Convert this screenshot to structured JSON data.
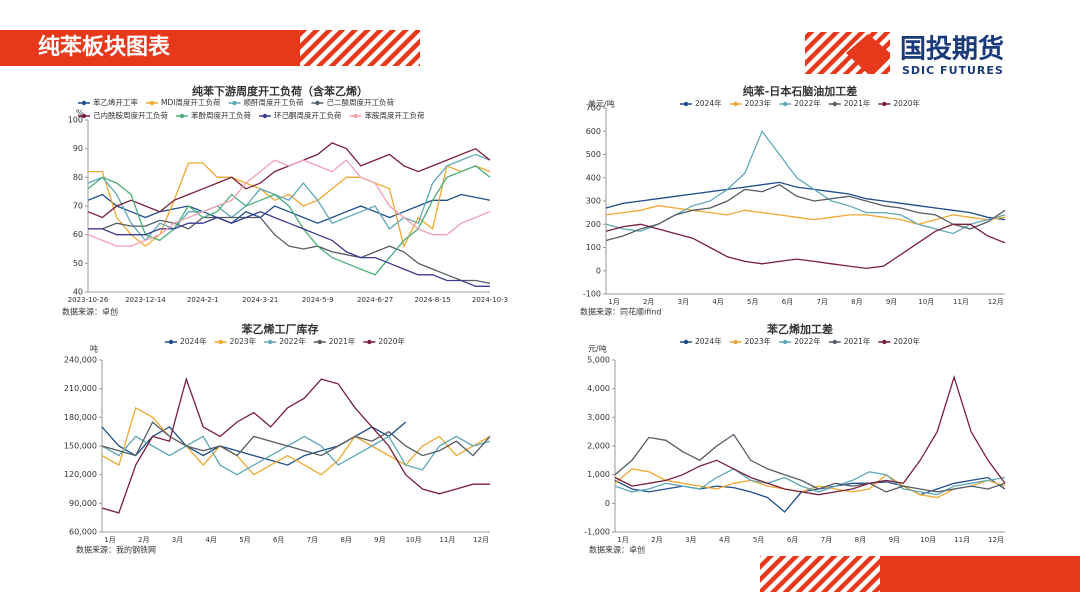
{
  "header": {
    "title": "纯苯板块图表",
    "logo_cn": "国投期货",
    "logo_en": "SDIC FUTURES"
  },
  "chart_data": [
    {
      "type": "line",
      "title": "纯苯下游周度开工负荷（含苯乙烯）",
      "y_label": "%",
      "source": "数据来源：卓创",
      "categories": [
        "2023-10-26",
        null,
        null,
        null,
        "2023-12-14",
        null,
        null,
        null,
        "2024-2-1",
        null,
        null,
        null,
        "2024-3-21",
        null,
        null,
        null,
        "2024-5-9",
        null,
        null,
        null,
        "2024-6-27",
        null,
        null,
        null,
        "2024-8-15",
        null,
        null,
        null,
        "2024-10-3"
      ],
      "ylim": [
        40,
        100
      ],
      "yticks": [
        40,
        50,
        60,
        70,
        80,
        90,
        100
      ],
      "series": [
        {
          "name": "苯乙烯开工率",
          "color": "#1f4e8c",
          "values": [
            72,
            74,
            70,
            68,
            66,
            68,
            69,
            70,
            68,
            66,
            64,
            68,
            66,
            70,
            68,
            66,
            64,
            66,
            68,
            70,
            68,
            66,
            68,
            70,
            72,
            72,
            74,
            73,
            72
          ]
        },
        {
          "name": "MDI周度开工负荷",
          "color": "#f0a830",
          "values": [
            82,
            82,
            66,
            60,
            56,
            60,
            72,
            85,
            85,
            80,
            80,
            78,
            76,
            72,
            74,
            70,
            72,
            76,
            80,
            80,
            78,
            76,
            56,
            66,
            62,
            84,
            82,
            84,
            82
          ]
        },
        {
          "name": "顺酐周度开工负荷",
          "color": "#5fa8b8",
          "values": [
            78,
            80,
            74,
            64,
            58,
            64,
            62,
            68,
            68,
            70,
            66,
            70,
            76,
            74,
            72,
            78,
            72,
            64,
            66,
            68,
            70,
            62,
            66,
            64,
            78,
            84,
            86,
            88,
            86
          ]
        },
        {
          "name": "己二酸周度开工负荷",
          "color": "#555d66",
          "values": [
            62,
            62,
            64,
            63,
            63,
            65,
            64,
            62,
            66,
            66,
            66,
            66,
            66,
            60,
            56,
            55,
            56,
            54,
            53,
            52,
            54,
            56,
            54,
            50,
            48,
            46,
            44,
            44,
            43
          ]
        },
        {
          "name": "己内酰胺周度开工负荷",
          "color": "#7a1f3d",
          "values": [
            68,
            66,
            70,
            72,
            70,
            68,
            72,
            74,
            76,
            78,
            80,
            76,
            78,
            82,
            84,
            86,
            88,
            92,
            90,
            84,
            86,
            88,
            84,
            82,
            84,
            86,
            88,
            90,
            86
          ]
        },
        {
          "name": "苯酚周度开工负荷",
          "color": "#4caf7a",
          "values": [
            76,
            80,
            78,
            74,
            60,
            58,
            62,
            70,
            66,
            68,
            74,
            70,
            72,
            74,
            70,
            62,
            56,
            52,
            50,
            48,
            46,
            52,
            58,
            62,
            72,
            80,
            82,
            84,
            80
          ]
        },
        {
          "name": "环己酮周度开工负荷",
          "color": "#3b3b8f",
          "values": [
            62,
            62,
            60,
            60,
            60,
            62,
            62,
            64,
            64,
            66,
            64,
            66,
            68,
            66,
            64,
            62,
            60,
            58,
            54,
            52,
            52,
            50,
            48,
            46,
            46,
            44,
            44,
            42,
            42
          ]
        },
        {
          "name": "苯胺周度开工负荷",
          "color": "#f2a0b0",
          "values": [
            60,
            58,
            56,
            56,
            58,
            60,
            64,
            66,
            68,
            70,
            72,
            78,
            82,
            86,
            84,
            86,
            84,
            82,
            86,
            80,
            78,
            70,
            66,
            62,
            60,
            60,
            64,
            66,
            68
          ]
        }
      ]
    },
    {
      "type": "line",
      "title": "纯苯-日本石脑油加工差",
      "y_label": "美元/吨",
      "source": "数据来源：同花顺ifind",
      "categories": [
        "1月",
        null,
        "2月",
        null,
        "3月",
        null,
        "4月",
        null,
        "5月",
        null,
        "6月",
        null,
        "7月",
        null,
        "8月",
        null,
        "9月",
        null,
        "10月",
        null,
        "11月",
        null,
        "12月",
        null
      ],
      "ylim": [
        -100,
        700
      ],
      "yticks": [
        -100,
        0,
        100,
        200,
        300,
        400,
        500,
        600,
        700
      ],
      "series": [
        {
          "name": "2024年",
          "color": "#1f4e8c",
          "values": [
            270,
            290,
            300,
            310,
            320,
            330,
            340,
            350,
            360,
            370,
            380,
            360,
            350,
            340,
            330,
            310,
            300,
            290,
            280,
            270,
            260,
            250,
            230,
            220
          ]
        },
        {
          "name": "2023年",
          "color": "#f0a830",
          "values": [
            240,
            250,
            260,
            280,
            270,
            260,
            250,
            240,
            260,
            250,
            240,
            230,
            220,
            230,
            240,
            240,
            230,
            220,
            200,
            220,
            240,
            230,
            220,
            230
          ]
        },
        {
          "name": "2022年",
          "color": "#5fa8b8",
          "values": [
            200,
            180,
            170,
            200,
            240,
            280,
            300,
            350,
            420,
            600,
            500,
            400,
            350,
            300,
            280,
            250,
            250,
            240,
            200,
            180,
            160,
            200,
            220,
            240
          ]
        },
        {
          "name": "2021年",
          "color": "#555d66",
          "values": [
            130,
            150,
            180,
            200,
            240,
            260,
            270,
            300,
            350,
            340,
            370,
            320,
            300,
            310,
            320,
            300,
            280,
            270,
            250,
            240,
            200,
            180,
            210,
            260
          ]
        },
        {
          "name": "2020年",
          "color": "#7a1f3d",
          "values": [
            170,
            190,
            200,
            180,
            160,
            140,
            100,
            60,
            40,
            30,
            40,
            50,
            40,
            30,
            20,
            10,
            20,
            70,
            120,
            170,
            200,
            200,
            150,
            120
          ]
        }
      ]
    },
    {
      "type": "line",
      "title": "苯乙烯工厂库存",
      "y_label": "吨",
      "source": "数据来源：我的钢铁网",
      "categories": [
        "1月",
        null,
        "2月",
        null,
        "3月",
        null,
        "4月",
        null,
        "5月",
        null,
        "6月",
        null,
        "7月",
        null,
        "8月",
        null,
        "9月",
        null,
        "10月",
        null,
        "11月",
        null,
        "12月",
        null
      ],
      "ylim": [
        60000,
        240000
      ],
      "yticks": [
        {
          "value": 60000,
          "label": "60,000"
        },
        {
          "value": 90000,
          "label": "90,000"
        },
        {
          "value": 120000,
          "label": "120,000"
        },
        {
          "value": 150000,
          "label": "150,000"
        },
        {
          "value": 180000,
          "label": "180,000"
        },
        {
          "value": 210000,
          "label": "210,000"
        },
        {
          "value": 240000,
          "label": "240,000"
        }
      ],
      "series": [
        {
          "name": "2024年",
          "color": "#1f4e8c",
          "values": [
            170000,
            150000,
            140000,
            160000,
            170000,
            150000,
            140000,
            150000,
            145000,
            140000,
            135000,
            130000,
            140000,
            145000,
            150000,
            160000,
            170000,
            160000,
            175000,
            null,
            null,
            null,
            null,
            null
          ]
        },
        {
          "name": "2023年",
          "color": "#f0a830",
          "values": [
            140000,
            130000,
            190000,
            180000,
            160000,
            150000,
            130000,
            150000,
            140000,
            120000,
            130000,
            140000,
            130000,
            120000,
            135000,
            160000,
            150000,
            140000,
            130000,
            150000,
            160000,
            140000,
            150000,
            160000
          ]
        },
        {
          "name": "2022年",
          "color": "#5fa8b8",
          "values": [
            150000,
            140000,
            160000,
            150000,
            140000,
            150000,
            160000,
            130000,
            120000,
            130000,
            140000,
            150000,
            160000,
            150000,
            130000,
            140000,
            150000,
            160000,
            130000,
            125000,
            150000,
            160000,
            150000,
            155000
          ]
        },
        {
          "name": "2021年",
          "color": "#555d66",
          "values": [
            150000,
            145000,
            140000,
            175000,
            160000,
            150000,
            145000,
            150000,
            140000,
            160000,
            155000,
            150000,
            145000,
            140000,
            150000,
            160000,
            155000,
            165000,
            150000,
            140000,
            145000,
            155000,
            140000,
            160000
          ]
        },
        {
          "name": "2020年",
          "color": "#7a1f3d",
          "values": [
            85000,
            80000,
            130000,
            160000,
            155000,
            220000,
            170000,
            160000,
            175000,
            185000,
            170000,
            190000,
            200000,
            220000,
            215000,
            190000,
            170000,
            150000,
            120000,
            105000,
            100000,
            105000,
            110000,
            110000
          ]
        }
      ]
    },
    {
      "type": "line",
      "title": "苯乙烯加工差",
      "y_label": "元/吨",
      "source": "数据来源：卓创",
      "categories": [
        "1月",
        null,
        "2月",
        null,
        "3月",
        null,
        "4月",
        null,
        "5月",
        null,
        "6月",
        null,
        "7月",
        null,
        "8月",
        null,
        "9月",
        null,
        "10月",
        null,
        "11月",
        null,
        "12月",
        null
      ],
      "ylim": [
        -1000,
        5000
      ],
      "yticks": [
        {
          "value": -1000,
          "label": "-1,000"
        },
        0,
        {
          "value": 1000,
          "label": "1,000"
        },
        {
          "value": 2000,
          "label": "2,000"
        },
        {
          "value": 3000,
          "label": "3,000"
        },
        {
          "value": 4000,
          "label": "4,000"
        },
        {
          "value": 5000,
          "label": "5,000"
        }
      ],
      "series": [
        {
          "name": "2024年",
          "color": "#1f4e8c",
          "values": [
            800,
            500,
            400,
            500,
            600,
            500,
            600,
            550,
            400,
            200,
            -300,
            400,
            500,
            600,
            700,
            700,
            750,
            600,
            300,
            500,
            700,
            800,
            900,
            500
          ]
        },
        {
          "name": "2023年",
          "color": "#f0a830",
          "values": [
            700,
            1200,
            1100,
            800,
            700,
            600,
            500,
            700,
            800,
            600,
            500,
            400,
            600,
            500,
            400,
            500,
            1000,
            600,
            300,
            200,
            500,
            600,
            800,
            600
          ]
        },
        {
          "name": "2022年",
          "color": "#5fa8b8",
          "values": [
            600,
            400,
            500,
            700,
            600,
            500,
            900,
            1200,
            800,
            700,
            900,
            600,
            400,
            600,
            800,
            1100,
            1000,
            500,
            400,
            300,
            600,
            700,
            800,
            900
          ]
        },
        {
          "name": "2021年",
          "color": "#555d66",
          "values": [
            1000,
            1500,
            2300,
            2200,
            1800,
            1500,
            2000,
            2400,
            1500,
            1200,
            1000,
            800,
            500,
            700,
            600,
            700,
            400,
            600,
            500,
            400,
            500,
            600,
            500,
            700
          ]
        },
        {
          "name": "2020年",
          "color": "#7a1f3d",
          "values": [
            900,
            600,
            700,
            800,
            1000,
            1300,
            1500,
            1200,
            900,
            700,
            500,
            400,
            300,
            400,
            500,
            700,
            800,
            700,
            1500,
            2500,
            4400,
            2500,
            1500,
            700
          ]
        }
      ]
    }
  ]
}
